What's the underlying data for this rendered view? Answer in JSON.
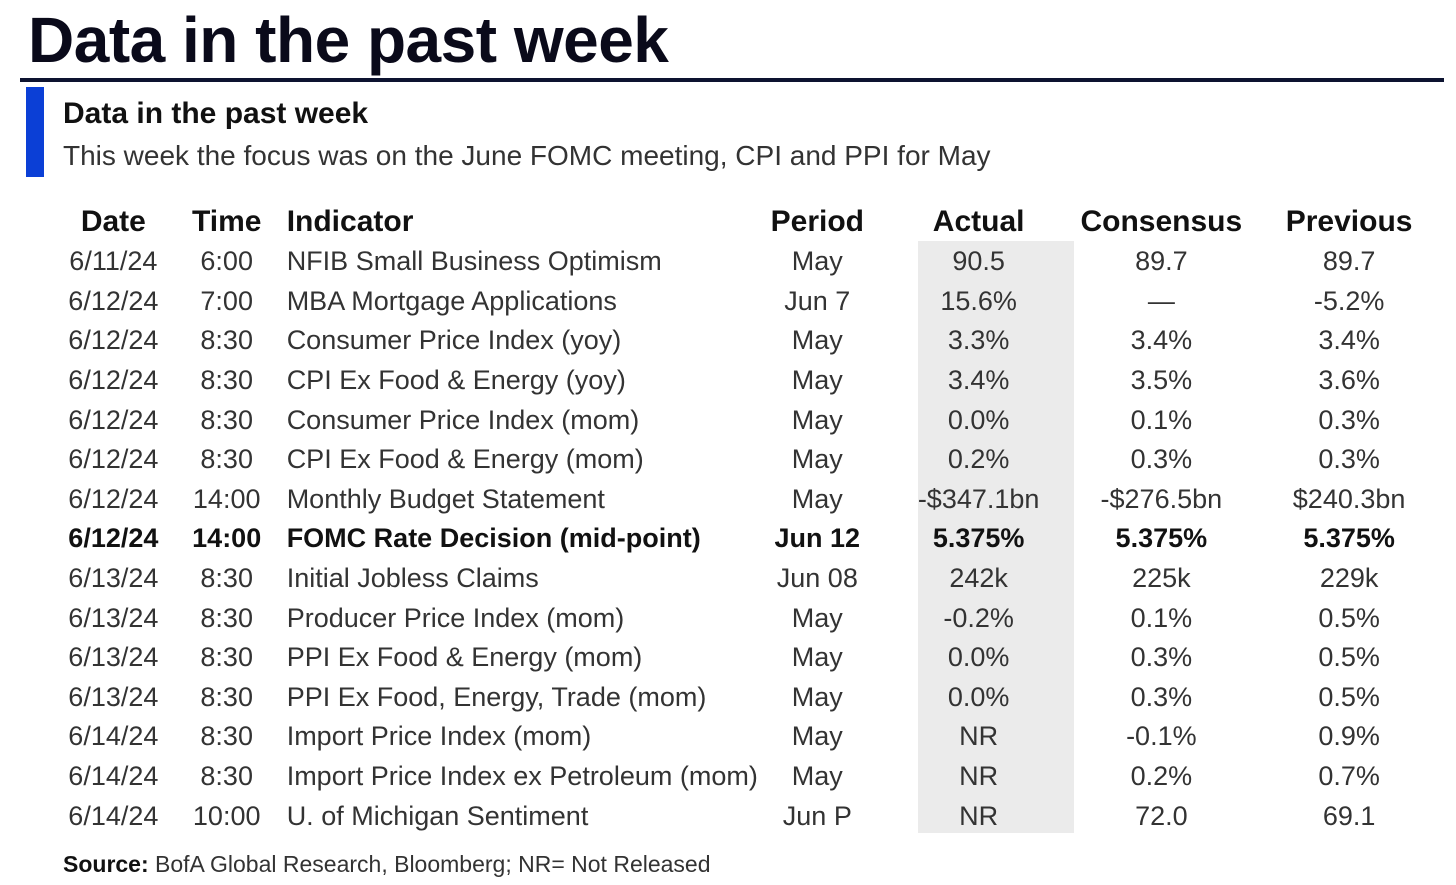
{
  "page": {
    "title": "Data in the past week"
  },
  "section": {
    "title": "Data in the past week",
    "subtitle": "This week the focus was on the June FOMC meeting, CPI and PPI for May"
  },
  "table": {
    "headers": {
      "date": "Date",
      "time": "Time",
      "indicator": "Indicator",
      "period": "Period",
      "actual": "Actual",
      "consensus": "Consensus",
      "previous": "Previous"
    },
    "rows": [
      {
        "date": "6/11/24",
        "time": "6:00",
        "indicator": "NFIB Small Business Optimism",
        "period": "May",
        "actual": "90.5",
        "consensus": "89.7",
        "previous": "89.7",
        "bold": false
      },
      {
        "date": "6/12/24",
        "time": "7:00",
        "indicator": "MBA Mortgage Applications",
        "period": "Jun 7",
        "actual": "15.6%",
        "consensus": "—",
        "previous": "-5.2%",
        "bold": false
      },
      {
        "date": "6/12/24",
        "time": "8:30",
        "indicator": "Consumer Price Index (yoy)",
        "period": "May",
        "actual": "3.3%",
        "consensus": "3.4%",
        "previous": "3.4%",
        "bold": false
      },
      {
        "date": "6/12/24",
        "time": "8:30",
        "indicator": "CPI Ex Food & Energy (yoy)",
        "period": "May",
        "actual": "3.4%",
        "consensus": "3.5%",
        "previous": "3.6%",
        "bold": false
      },
      {
        "date": "6/12/24",
        "time": "8:30",
        "indicator": "Consumer Price Index (mom)",
        "period": "May",
        "actual": "0.0%",
        "consensus": "0.1%",
        "previous": "0.3%",
        "bold": false
      },
      {
        "date": "6/12/24",
        "time": "8:30",
        "indicator": "CPI Ex Food & Energy (mom)",
        "period": "May",
        "actual": "0.2%",
        "consensus": "0.3%",
        "previous": "0.3%",
        "bold": false
      },
      {
        "date": "6/12/24",
        "time": "14:00",
        "indicator": "Monthly Budget Statement",
        "period": "May",
        "actual": "-$347.1bn",
        "consensus": "-$276.5bn",
        "previous": "$240.3bn",
        "bold": false
      },
      {
        "date": "6/12/24",
        "time": "14:00",
        "indicator": "FOMC Rate Decision (mid-point)",
        "period": "Jun 12",
        "actual": "5.375%",
        "consensus": "5.375%",
        "previous": "5.375%",
        "bold": true
      },
      {
        "date": "6/13/24",
        "time": "8:30",
        "indicator": "Initial Jobless Claims",
        "period": "Jun 08",
        "actual": "242k",
        "consensus": "225k",
        "previous": "229k",
        "bold": false
      },
      {
        "date": "6/13/24",
        "time": "8:30",
        "indicator": "Producer Price Index (mom)",
        "period": "May",
        "actual": "-0.2%",
        "consensus": "0.1%",
        "previous": "0.5%",
        "bold": false
      },
      {
        "date": "6/13/24",
        "time": "8:30",
        "indicator": "PPI Ex Food & Energy (mom)",
        "period": "May",
        "actual": "0.0%",
        "consensus": "0.3%",
        "previous": "0.5%",
        "bold": false
      },
      {
        "date": "6/13/24",
        "time": "8:30",
        "indicator": "PPI Ex Food, Energy, Trade (mom)",
        "period": "May",
        "actual": "0.0%",
        "consensus": "0.3%",
        "previous": "0.5%",
        "bold": false
      },
      {
        "date": "6/14/24",
        "time": "8:30",
        "indicator": "Import Price Index (mom)",
        "period": "May",
        "actual": "NR",
        "consensus": "-0.1%",
        "previous": "0.9%",
        "bold": false
      },
      {
        "date": "6/14/24",
        "time": "8:30",
        "indicator": "Import Price Index ex Petroleum (mom)",
        "period": "May",
        "actual": "NR",
        "consensus": "0.2%",
        "previous": "0.7%",
        "bold": false
      },
      {
        "date": "6/14/24",
        "time": "10:00",
        "indicator": "U. of Michigan Sentiment",
        "period": "Jun P",
        "actual": "NR",
        "consensus": "72.0",
        "previous": "69.1",
        "bold": false
      }
    ]
  },
  "source": {
    "label": "Source:",
    "text": " BofA Global Research, Bloomberg; NR= Not Released"
  },
  "colors": {
    "accent": "#0b3fd6",
    "title_rule": "#0d1330",
    "actual_shading": "#ebebeb"
  }
}
